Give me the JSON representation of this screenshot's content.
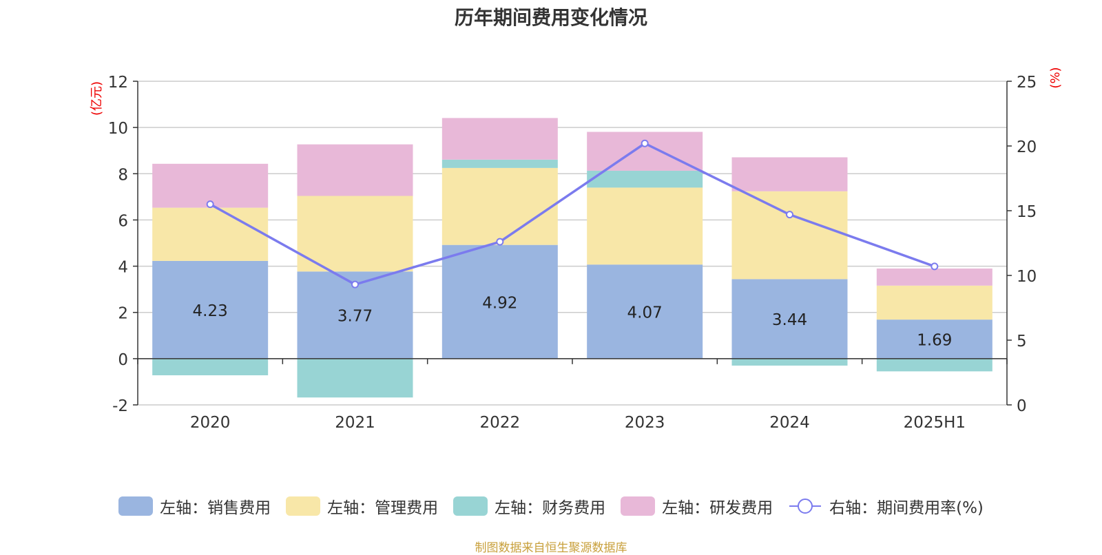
{
  "chart_data": {
    "type": "bar",
    "title": "历年期间费用变化情况",
    "categories": [
      "2020",
      "2021",
      "2022",
      "2023",
      "2024",
      "2025H1"
    ],
    "left_axis": {
      "unit_label": "(亿元)",
      "ylim": [
        -2,
        12
      ],
      "ticks": [
        -2,
        0,
        2,
        4,
        6,
        8,
        10,
        12
      ]
    },
    "right_axis": {
      "unit_label": "(%)",
      "ylim": [
        0,
        25
      ],
      "ticks": [
        0,
        5,
        10,
        15,
        20,
        25
      ]
    },
    "series": [
      {
        "name": "左轴：销售费用",
        "type": "bar",
        "axis": "left",
        "color": "#9ab5e0",
        "values": [
          4.23,
          3.77,
          4.92,
          4.07,
          3.44,
          1.69
        ],
        "show_labels": true
      },
      {
        "name": "左轴：管理费用",
        "type": "bar",
        "axis": "left",
        "color": "#f8e7a8",
        "values": [
          2.3,
          3.27,
          3.33,
          3.33,
          3.8,
          1.47
        ],
        "show_labels": false
      },
      {
        "name": "左轴：财务费用",
        "type": "bar",
        "axis": "left",
        "color": "#98d4d4",
        "values": [
          -0.72,
          -1.68,
          0.36,
          0.73,
          -0.3,
          -0.55
        ],
        "show_labels": false
      },
      {
        "name": "左轴：研发费用",
        "type": "bar",
        "axis": "left",
        "color": "#e8b8d8",
        "values": [
          1.9,
          2.23,
          1.8,
          1.68,
          1.47,
          0.74
        ],
        "show_labels": false
      },
      {
        "name": "右轴：期间费用率(%)",
        "type": "line",
        "axis": "right",
        "color": "#7b7bee",
        "values": [
          15.5,
          9.3,
          12.6,
          20.2,
          14.7,
          10.7
        ]
      }
    ],
    "grid": true,
    "legend_position": "bottom",
    "stacked": true
  },
  "footer": {
    "source_note": "制图数据来自恒生聚源数据库"
  }
}
